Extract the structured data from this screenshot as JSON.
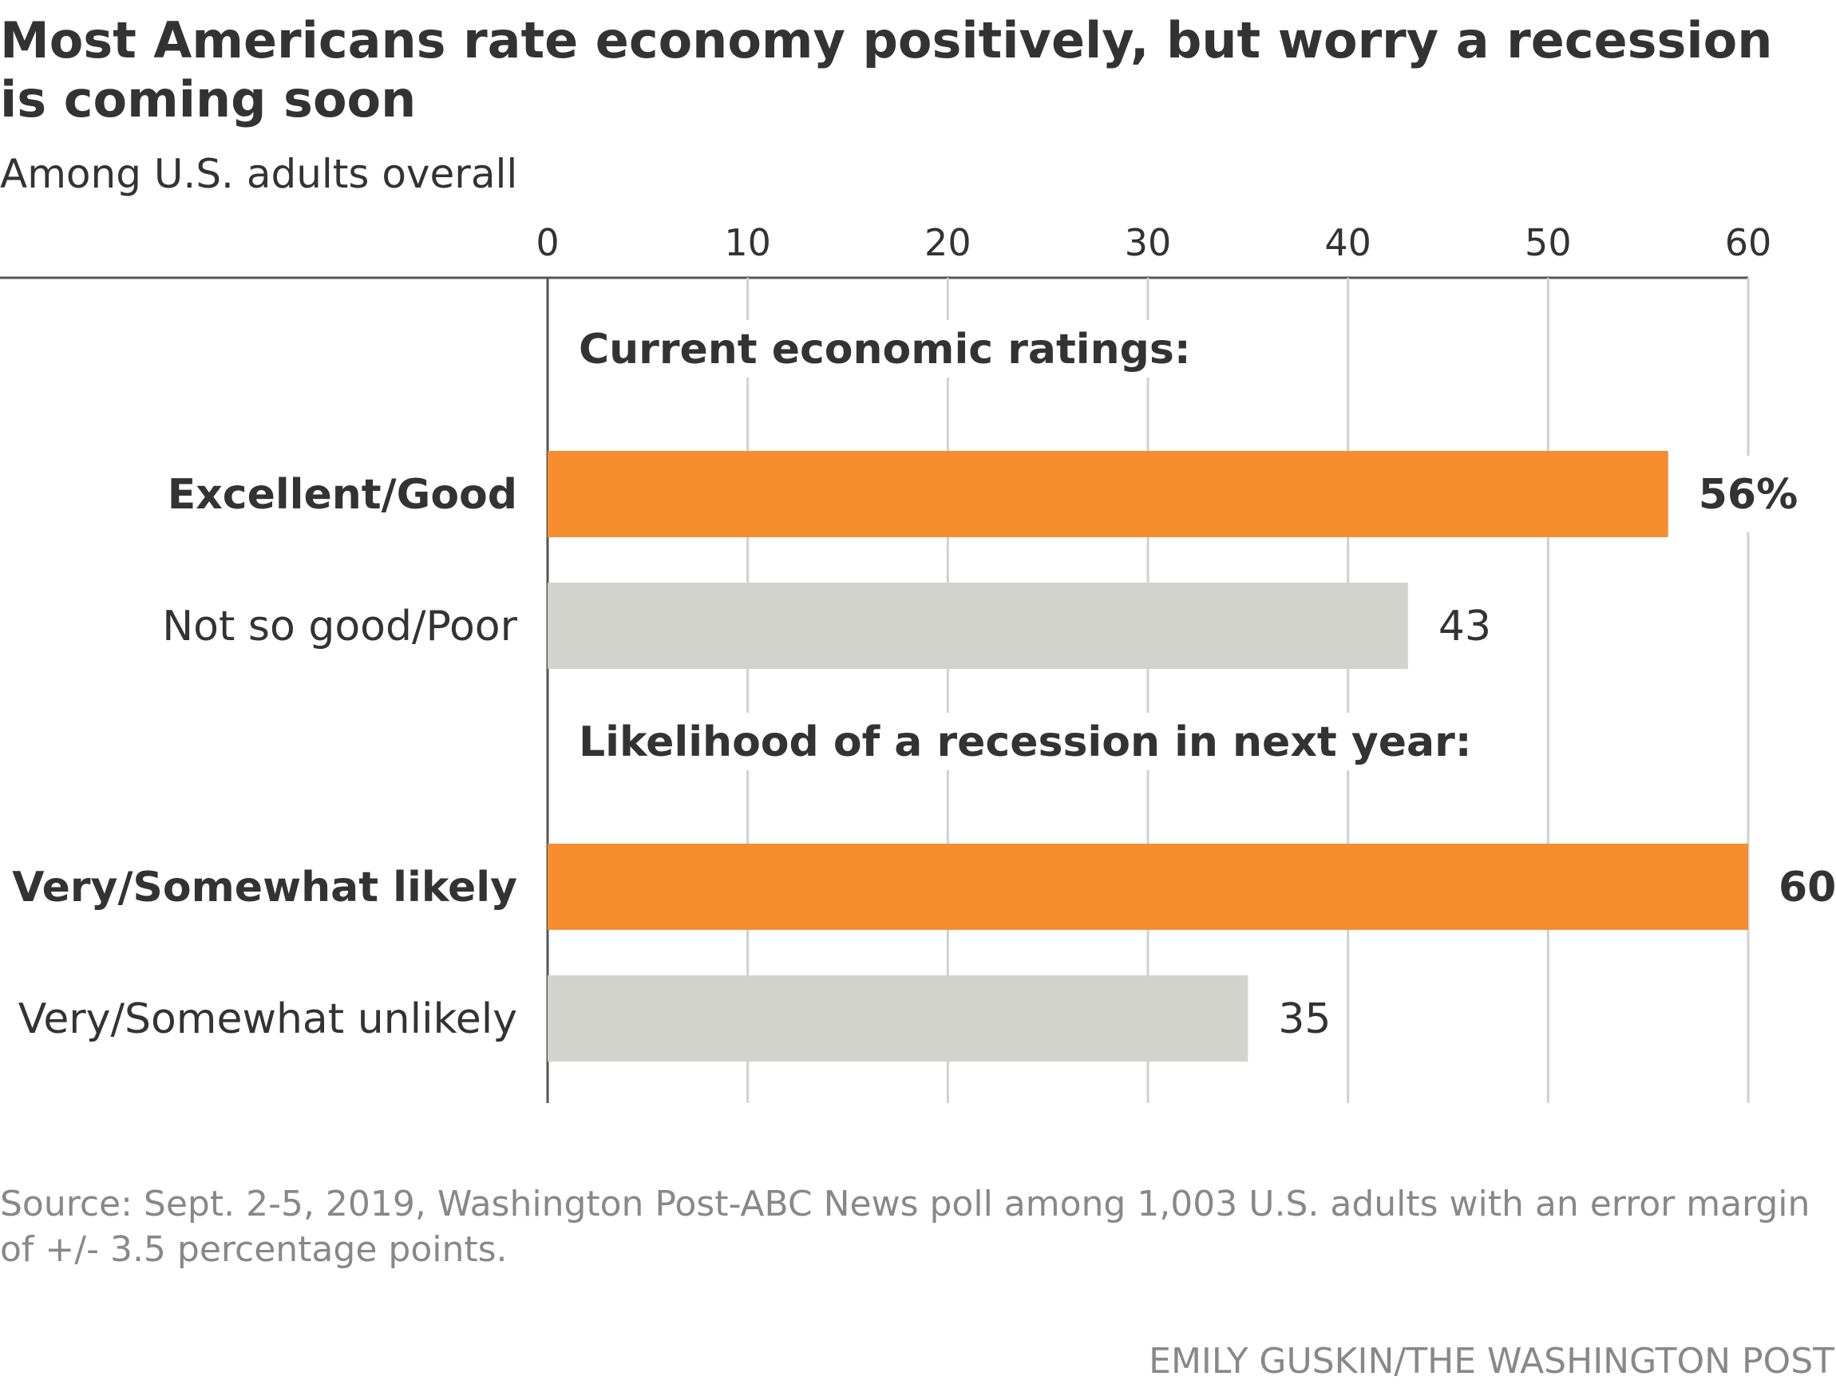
{
  "header": {
    "title": "Most Americans rate economy positively, but worry a recession is coming soon",
    "subtitle": "Among U.S. adults overall"
  },
  "chart_data": {
    "type": "bar",
    "orientation": "horizontal",
    "xlim": [
      0,
      60
    ],
    "ticks": [
      "0",
      "10",
      "20",
      "30",
      "40",
      "50",
      "60"
    ],
    "grid": true,
    "colors": {
      "highlight": "#f68d2e",
      "neutral": "#d3d3ce",
      "grid": "#d0d0d0",
      "axis": "#555555"
    },
    "groups": [
      {
        "heading": "Current economic ratings:",
        "bars": [
          {
            "label": "Excellent/Good",
            "value": 56,
            "value_label": "56%",
            "highlight": true
          },
          {
            "label": "Not so good/Poor",
            "value": 43,
            "value_label": "43",
            "highlight": false
          }
        ]
      },
      {
        "heading": "Likelihood of a recession in next year:",
        "bars": [
          {
            "label": "Very/Somewhat likely",
            "value": 60,
            "value_label": "60",
            "highlight": true
          },
          {
            "label": "Very/Somewhat unlikely",
            "value": 35,
            "value_label": "35",
            "highlight": false
          }
        ]
      }
    ]
  },
  "footer": {
    "source": "Source: Sept. 2-5, 2019, Washington Post-ABC News poll among 1,003 U.S. adults with an error margin of +/- 3.5 percentage points.",
    "credit": "EMILY GUSKIN/THE WASHINGTON POST"
  }
}
